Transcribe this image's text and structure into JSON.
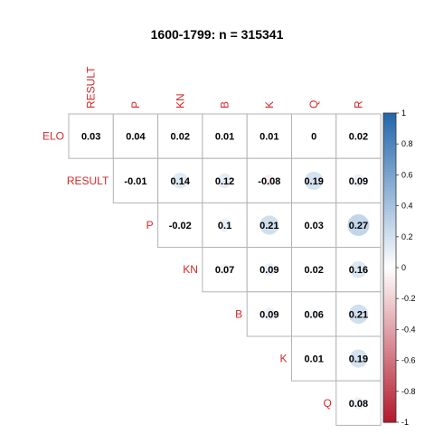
{
  "chart_data": {
    "type": "heatmap",
    "title": "1600-1799: n = 315341",
    "rows": [
      "ELO",
      "RESULT",
      "P",
      "KN",
      "B",
      "K",
      "Q"
    ],
    "columns": [
      "RESULT",
      "P",
      "KN",
      "B",
      "K",
      "Q",
      "R"
    ],
    "values": [
      [
        0.03,
        0.04,
        0.02,
        0.01,
        0.01,
        0,
        0.02
      ],
      [
        null,
        -0.01,
        0.14,
        0.12,
        -0.08,
        0.19,
        0.09
      ],
      [
        null,
        null,
        -0.02,
        0.1,
        0.21,
        0.03,
        0.27
      ],
      [
        null,
        null,
        null,
        0.07,
        0.09,
        0.02,
        0.16
      ],
      [
        null,
        null,
        null,
        null,
        0.09,
        0.06,
        0.21
      ],
      [
        null,
        null,
        null,
        null,
        null,
        0.01,
        0.19
      ],
      [
        null,
        null,
        null,
        null,
        null,
        null,
        0.08
      ]
    ],
    "colorbar": {
      "range": [
        -1,
        1
      ],
      "ticks": [
        1,
        0.8,
        0.6,
        0.4,
        0.2,
        0,
        -0.2,
        -0.4,
        -0.6,
        -0.8,
        -1
      ],
      "colors": {
        "negative": "#b2182b",
        "zero": "#ffffff",
        "positive": "#2166ac"
      }
    }
  }
}
